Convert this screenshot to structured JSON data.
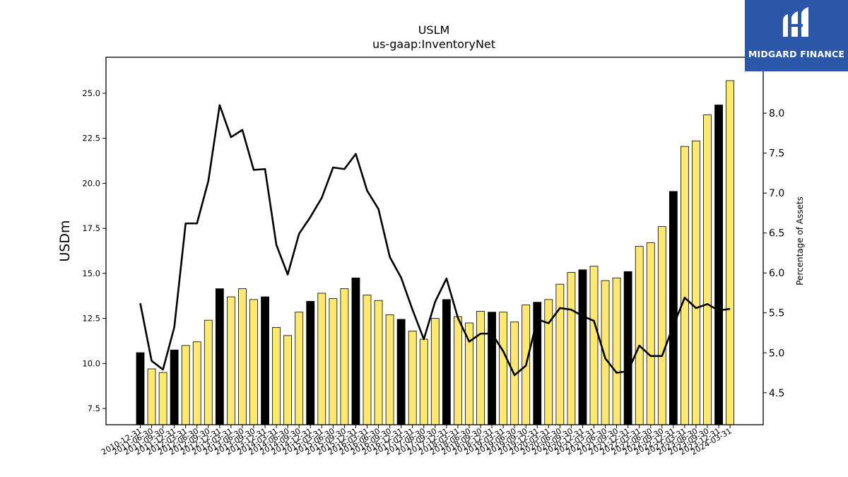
{
  "chart_data": {
    "type": "bar",
    "title": "USLM",
    "subtitle": "us-gaap:InventoryNet",
    "ylabel": "USDm",
    "y2label": "Percentage of Assets",
    "ylim": [
      6.6,
      27.0
    ],
    "y2lim": [
      4.1,
      8.7
    ],
    "yticks": [
      "7.5",
      "10.0",
      "12.5",
      "15.0",
      "17.5",
      "20.0",
      "22.5",
      "25.0"
    ],
    "y2ticks": [
      "4.5",
      "5.0",
      "5.5",
      "6.0",
      "6.5",
      "7.0",
      "7.5",
      "8.0"
    ],
    "categories": [
      "2010-12-31",
      "2011-06-30",
      "2011-09-30",
      "2011-12-31",
      "2012-03-31",
      "2012-06-30",
      "2012-09-30",
      "2012-12-31",
      "2013-03-31",
      "2013-06-30",
      "2013-09-30",
      "2013-12-31",
      "2014-03-31",
      "2014-06-30",
      "2014-09-30",
      "2014-12-31",
      "2015-03-31",
      "2015-06-30",
      "2015-09-30",
      "2015-12-31",
      "2016-03-31",
      "2016-06-30",
      "2016-09-30",
      "2016-12-31",
      "2017-03-31",
      "2017-06-30",
      "2017-09-30",
      "2017-12-31",
      "2018-03-31",
      "2018-06-30",
      "2018-09-30",
      "2018-12-31",
      "2019-03-31",
      "2019-06-30",
      "2019-09-30",
      "2019-12-31",
      "2020-03-31",
      "2020-06-30",
      "2020-09-30",
      "2020-12-31",
      "2021-03-31",
      "2021-06-30",
      "2021-09-30",
      "2021-12-31",
      "2022-03-31",
      "2022-06-30",
      "2022-09-30",
      "2022-12-31",
      "2023-03-31",
      "2023-06-30",
      "2023-09-30",
      "2023-12-31",
      "2024-03-31"
    ],
    "series": [
      {
        "kind": "bar",
        "values": [
          10.6,
          9.7,
          9.5,
          10.75,
          11.0,
          11.2,
          12.4,
          14.15,
          13.7,
          14.15,
          13.55,
          13.7,
          12.0,
          11.55,
          12.85,
          13.45,
          13.9,
          13.6,
          14.15,
          14.75,
          13.8,
          13.5,
          12.7,
          12.45,
          11.8,
          11.35,
          12.5,
          13.55,
          12.6,
          12.25,
          12.9,
          12.85,
          12.85,
          12.3,
          13.25,
          13.4,
          13.55,
          14.4,
          15.05,
          15.2,
          15.4,
          14.6,
          14.75,
          15.1,
          16.5,
          16.7,
          17.6,
          19.55,
          22.05,
          22.35,
          23.8,
          24.35,
          25.7
        ],
        "fiscal_year_end": [
          true,
          false,
          false,
          true,
          false,
          false,
          false,
          true,
          false,
          false,
          false,
          true,
          false,
          false,
          false,
          true,
          false,
          false,
          false,
          true,
          false,
          false,
          false,
          true,
          false,
          false,
          false,
          true,
          false,
          false,
          false,
          true,
          false,
          false,
          false,
          true,
          false,
          false,
          false,
          true,
          false,
          false,
          false,
          true,
          false,
          false,
          false,
          true,
          false,
          false,
          false,
          true,
          false
        ]
      },
      {
        "kind": "line",
        "axis": "right",
        "values": [
          5.62,
          4.9,
          4.79,
          5.32,
          6.62,
          6.62,
          7.15,
          8.1,
          7.7,
          7.79,
          7.29,
          7.3,
          6.35,
          5.98,
          6.49,
          6.7,
          6.94,
          7.32,
          7.3,
          7.49,
          7.03,
          6.8,
          6.2,
          5.94,
          5.54,
          5.17,
          5.64,
          5.93,
          5.44,
          5.14,
          5.24,
          5.24,
          5.02,
          4.72,
          4.84,
          5.42,
          5.37,
          5.56,
          5.54,
          5.46,
          5.4,
          4.93,
          4.75,
          4.77,
          5.09,
          4.96,
          4.96,
          5.34,
          5.69,
          5.56,
          5.61,
          5.53,
          5.55
        ]
      }
    ],
    "colors": {
      "bar_fye": "#000000",
      "bar_other": "#fde870",
      "line": "#000000"
    }
  },
  "logo": {
    "text": "MIDGARD FINANCE",
    "background": "#2b57a8"
  }
}
